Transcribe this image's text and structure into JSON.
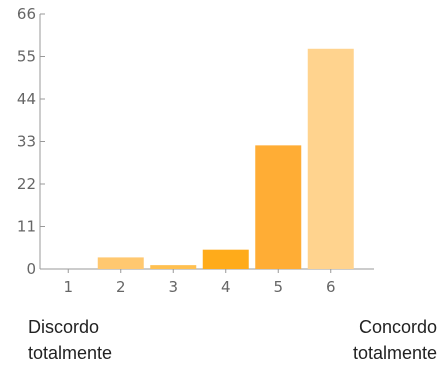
{
  "chart_data": {
    "type": "bar",
    "categories": [
      "1",
      "2",
      "3",
      "4",
      "5",
      "6"
    ],
    "values": [
      0,
      3,
      1,
      5,
      32,
      57
    ],
    "colors": [
      "#ffd08a",
      "#ffc870",
      "#ffc050",
      "#ffab1a",
      "#ffad35",
      "#ffd38e"
    ],
    "yticks": [
      "0",
      "11",
      "22",
      "33",
      "44",
      "55",
      "66"
    ],
    "ylim": [
      0,
      66
    ],
    "grid": false,
    "title": "",
    "xlabel": "",
    "ylabel": ""
  },
  "captions": {
    "left": [
      "Discordo",
      "totalmente"
    ],
    "right": [
      "Concordo",
      "totalmente"
    ]
  },
  "axis_color": "#999999"
}
